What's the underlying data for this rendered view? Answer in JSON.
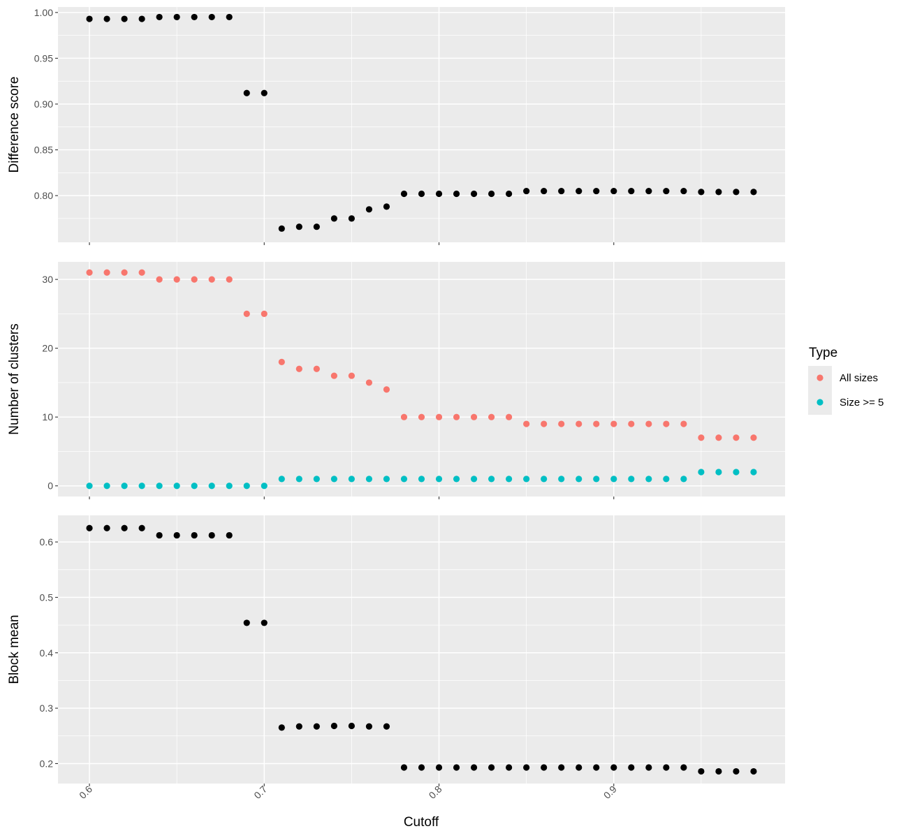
{
  "chart_data": {
    "type": "scatter",
    "xlabel": "Cutoff",
    "x_ticks": [
      0.6,
      0.7,
      0.8,
      0.9
    ],
    "x_tick_labels": [
      "0.6",
      "0.7",
      "0.8",
      "0.9"
    ],
    "xlim": [
      0.582,
      0.998
    ],
    "x": [
      0.6,
      0.61,
      0.62,
      0.63,
      0.64,
      0.65,
      0.66,
      0.67,
      0.68,
      0.69,
      0.7,
      0.71,
      0.72,
      0.73,
      0.74,
      0.75,
      0.76,
      0.77,
      0.78,
      0.79,
      0.8,
      0.81,
      0.82,
      0.83,
      0.84,
      0.85,
      0.86,
      0.87,
      0.88,
      0.89,
      0.9,
      0.91,
      0.92,
      0.93,
      0.94,
      0.95,
      0.96,
      0.97,
      0.98
    ],
    "panel_background": "#ebebeb",
    "grid": true,
    "legend_position": "right",
    "panels": [
      {
        "ylabel": "Difference score",
        "ylim": [
          0.749,
          1.006
        ],
        "y_ticks": [
          0.8,
          0.85,
          0.9,
          0.95,
          1.0
        ],
        "y_tick_labels": [
          "0.80",
          "0.85",
          "0.90",
          "0.95",
          "1.00"
        ],
        "series": [
          {
            "color": "#000000",
            "values": [
              0.993,
              0.993,
              0.993,
              0.993,
              0.995,
              0.995,
              0.995,
              0.995,
              0.995,
              0.912,
              0.912,
              0.764,
              0.766,
              0.766,
              0.775,
              0.775,
              0.785,
              0.788,
              0.802,
              0.802,
              0.802,
              0.802,
              0.802,
              0.802,
              0.802,
              0.805,
              0.805,
              0.805,
              0.805,
              0.805,
              0.805,
              0.805,
              0.805,
              0.805,
              0.805,
              0.804,
              0.804,
              0.804,
              0.804
            ]
          }
        ]
      },
      {
        "ylabel": "Number of clusters",
        "ylim": [
          -1.55,
          32.55
        ],
        "y_ticks": [
          0,
          10,
          20,
          30
        ],
        "y_tick_labels": [
          "0",
          "10",
          "20",
          "30"
        ],
        "series": [
          {
            "name": "All sizes",
            "color": "#F8766D",
            "values": [
              31,
              31,
              31,
              31,
              30,
              30,
              30,
              30,
              30,
              25,
              25,
              18,
              17,
              17,
              16,
              16,
              15,
              14,
              10,
              10,
              10,
              10,
              10,
              10,
              10,
              9,
              9,
              9,
              9,
              9,
              9,
              9,
              9,
              9,
              9,
              7,
              7,
              7,
              7
            ]
          },
          {
            "name": "Size >= 5",
            "color": "#00BFC4",
            "values": [
              0,
              0,
              0,
              0,
              0,
              0,
              0,
              0,
              0,
              0,
              0,
              1,
              1,
              1,
              1,
              1,
              1,
              1,
              1,
              1,
              1,
              1,
              1,
              1,
              1,
              1,
              1,
              1,
              1,
              1,
              1,
              1,
              1,
              1,
              1,
              2,
              2,
              2,
              2
            ]
          }
        ]
      },
      {
        "ylabel": "Block mean",
        "ylim": [
          0.164,
          0.648
        ],
        "y_ticks": [
          0.2,
          0.3,
          0.4,
          0.5,
          0.6
        ],
        "y_tick_labels": [
          "0.2",
          "0.3",
          "0.4",
          "0.5",
          "0.6"
        ],
        "series": [
          {
            "color": "#000000",
            "values": [
              0.625,
              0.625,
              0.625,
              0.625,
              0.612,
              0.612,
              0.612,
              0.612,
              0.612,
              0.454,
              0.454,
              0.265,
              0.267,
              0.267,
              0.268,
              0.268,
              0.267,
              0.267,
              0.193,
              0.193,
              0.193,
              0.193,
              0.193,
              0.193,
              0.193,
              0.193,
              0.193,
              0.193,
              0.193,
              0.193,
              0.193,
              0.193,
              0.193,
              0.193,
              0.193,
              0.186,
              0.186,
              0.186,
              0.186
            ]
          }
        ]
      }
    ],
    "legend": {
      "title": "Type",
      "entries": [
        {
          "label": "All sizes",
          "color": "#F8766D"
        },
        {
          "label": "Size >= 5",
          "color": "#00BFC4"
        }
      ]
    }
  }
}
